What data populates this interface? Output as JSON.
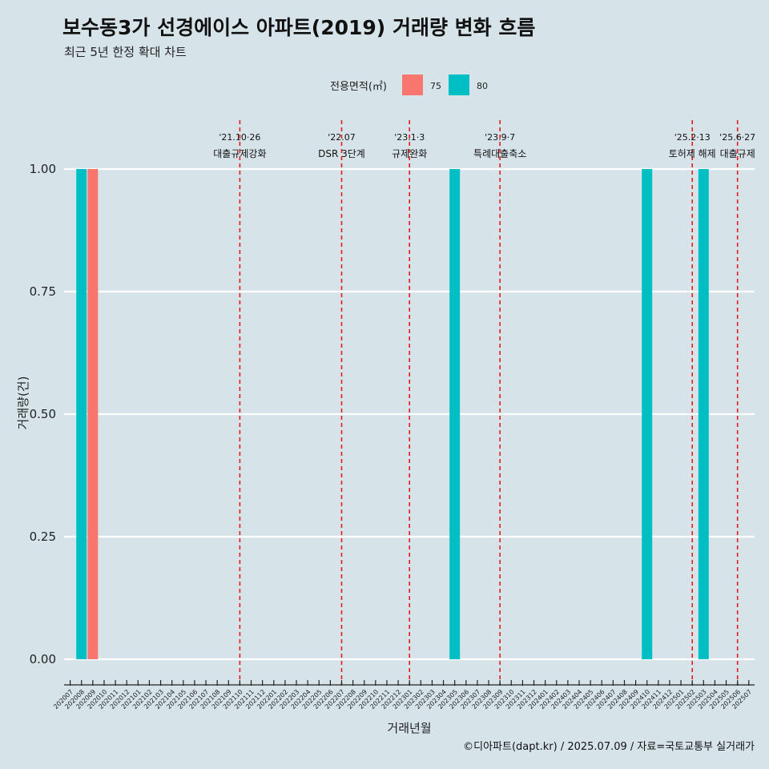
{
  "title": "보수동3가 선경에이스 아파트(2019) 거래량 변화 흐름",
  "subtitle": "최근 5년 한정 확대 차트",
  "caption": "©디아파트(dapt.kr) / 2025.07.09 / 자료=국토교통부 실거래가",
  "legend": {
    "title": "전용면적(㎡)",
    "items": [
      {
        "label": "75",
        "color": "#f8766d"
      },
      {
        "label": "80",
        "color": "#00bfc4"
      }
    ]
  },
  "colors": {
    "background": "#d6e4ea",
    "grid": "#ffffff",
    "event_line": "#e8191d"
  },
  "chart_data": {
    "type": "bar",
    "xlabel": "거래년월",
    "ylabel": "거래량(건)",
    "ylim": [
      0,
      1
    ],
    "y_ticks": [
      "0.00",
      "0.25",
      "0.50",
      "0.75",
      "1.00"
    ],
    "grid": "horizontal",
    "legend_position": "top",
    "categories": [
      "202007",
      "202008",
      "202009",
      "202010",
      "202011",
      "202012",
      "202101",
      "202102",
      "202103",
      "202104",
      "202105",
      "202106",
      "202107",
      "202108",
      "202109",
      "202110",
      "202111",
      "202112",
      "202201",
      "202202",
      "202203",
      "202204",
      "202205",
      "202206",
      "202207",
      "202208",
      "202209",
      "202210",
      "202211",
      "202212",
      "202301",
      "202302",
      "202303",
      "202304",
      "202305",
      "202306",
      "202307",
      "202308",
      "202309",
      "202310",
      "202311",
      "202312",
      "202401",
      "202402",
      "202403",
      "202404",
      "202405",
      "202406",
      "202407",
      "202408",
      "202409",
      "202410",
      "202411",
      "202412",
      "202501",
      "202502",
      "202503",
      "202504",
      "202505",
      "202506",
      "202507"
    ],
    "bars": [
      {
        "month": "202008",
        "series": "80",
        "value": 1
      },
      {
        "month": "202009",
        "series": "75",
        "value": 1
      },
      {
        "month": "202305",
        "series": "80",
        "value": 1
      },
      {
        "month": "202410",
        "series": "80",
        "value": 1
      },
      {
        "month": "202503",
        "series": "80",
        "value": 1
      }
    ],
    "events": [
      {
        "month": "202110",
        "date": "'21.10·26",
        "label": "대출규제강화"
      },
      {
        "month": "202207",
        "date": "'22.07",
        "label": "DSR 3단계"
      },
      {
        "month": "202301",
        "date": "'23.1·3",
        "label": "규제완화"
      },
      {
        "month": "202309",
        "date": "'23.9·7",
        "label": "특례대출축소"
      },
      {
        "month": "202502",
        "date": "'25.2·13",
        "label": "토허제 해제"
      },
      {
        "month": "202506",
        "date": "'25.6·27",
        "label": "대출규제"
      }
    ]
  }
}
